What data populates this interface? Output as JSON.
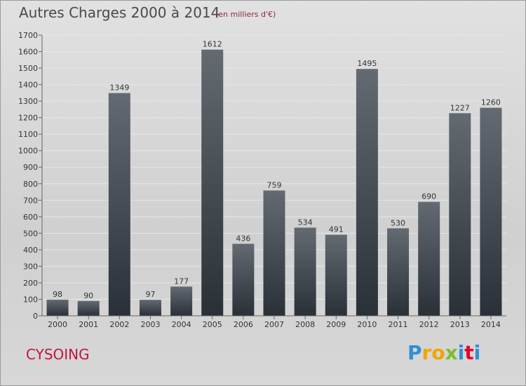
{
  "title": "Autres Charges 2000 à 2014",
  "subtitle": "(en milliers d'€)",
  "place": "CYSOING",
  "brand": {
    "letters": [
      "P",
      "r",
      "o",
      "x",
      "i",
      "t",
      "i"
    ],
    "colors": [
      "#2e8fd6",
      "#f2a400",
      "#f2a400",
      "#7bbf2a",
      "#2e8fd6",
      "#e4002b",
      "#2e8fd6"
    ]
  },
  "colors": {
    "bar_top": "#646a72",
    "bar_bottom": "#2a3038",
    "axis": "#666666",
    "grid": "#e6e6e6"
  },
  "chart_data": {
    "type": "bar",
    "title": "Autres Charges 2000 à 2014",
    "xlabel": "",
    "ylabel": "",
    "ylim": [
      0,
      1700
    ],
    "yticks": [
      0,
      100,
      200,
      300,
      400,
      500,
      600,
      700,
      800,
      900,
      1000,
      1100,
      1200,
      1300,
      1400,
      1500,
      1600,
      1700
    ],
    "grid": true,
    "categories": [
      "2000",
      "2001",
      "2002",
      "2003",
      "2004",
      "2005",
      "2006",
      "2007",
      "2008",
      "2009",
      "2010",
      "2011",
      "2012",
      "2013",
      "2014"
    ],
    "values": [
      98,
      90,
      1349,
      97,
      177,
      1612,
      436,
      759,
      534,
      491,
      1495,
      530,
      690,
      1227,
      1260
    ]
  }
}
